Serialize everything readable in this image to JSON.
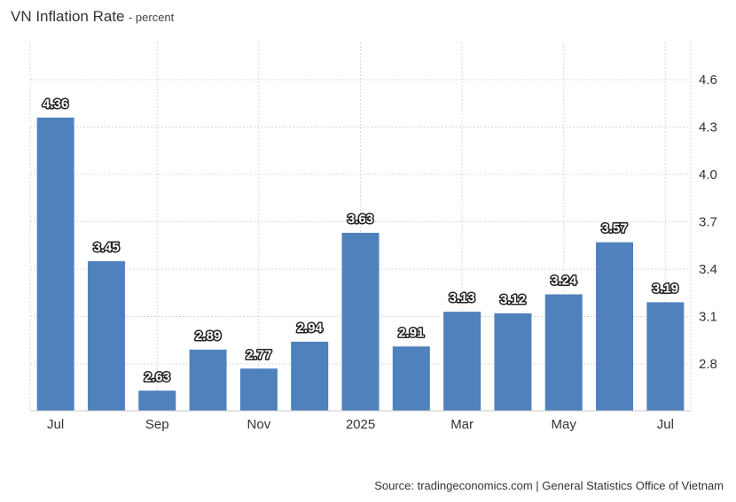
{
  "header": {
    "title": "VN Inflation Rate",
    "subtitle": "- percent"
  },
  "footer": {
    "source": "Source: tradingeconomics.com | General Statistics Office of Vietnam"
  },
  "colors": {
    "bar": "#4f81bd",
    "grid": "#d9d9d9",
    "axis": "#c8c8c8"
  },
  "chart_data": {
    "type": "bar",
    "categories": [
      "Jul 2024",
      "Aug 2024",
      "Sep 2024",
      "Oct 2024",
      "Nov 2024",
      "Dec 2024",
      "Jan 2025",
      "Feb 2025",
      "Mar 2025",
      "Apr 2025",
      "May 2025",
      "Jun 2025",
      "Jul 2025"
    ],
    "x_tick_labels": [
      "Jul",
      "",
      "Sep",
      "",
      "Nov",
      "",
      "2025",
      "",
      "Mar",
      "",
      "May",
      "",
      "Jul"
    ],
    "values": [
      4.36,
      3.45,
      2.63,
      2.89,
      2.77,
      2.94,
      3.63,
      2.91,
      3.13,
      3.12,
      3.24,
      3.57,
      3.19
    ],
    "data_labels": [
      "4.36",
      "3.45",
      "2.63",
      "2.89",
      "2.77",
      "2.94",
      "3.63",
      "2.91",
      "3.13",
      "3.12",
      "3.24",
      "3.57",
      "3.19"
    ],
    "y_ticks": [
      2.8,
      3.1,
      3.4,
      3.7,
      4.0,
      4.3,
      4.6
    ],
    "y_tick_labels": [
      "2.8",
      "3.1",
      "3.4",
      "3.7",
      "4.0",
      "4.3",
      "4.6"
    ],
    "ylim": [
      2.5,
      4.7
    ],
    "title": "VN Inflation Rate",
    "xlabel": "",
    "ylabel": "percent",
    "grid": true,
    "y_axis_side": "right",
    "legend": "none"
  }
}
